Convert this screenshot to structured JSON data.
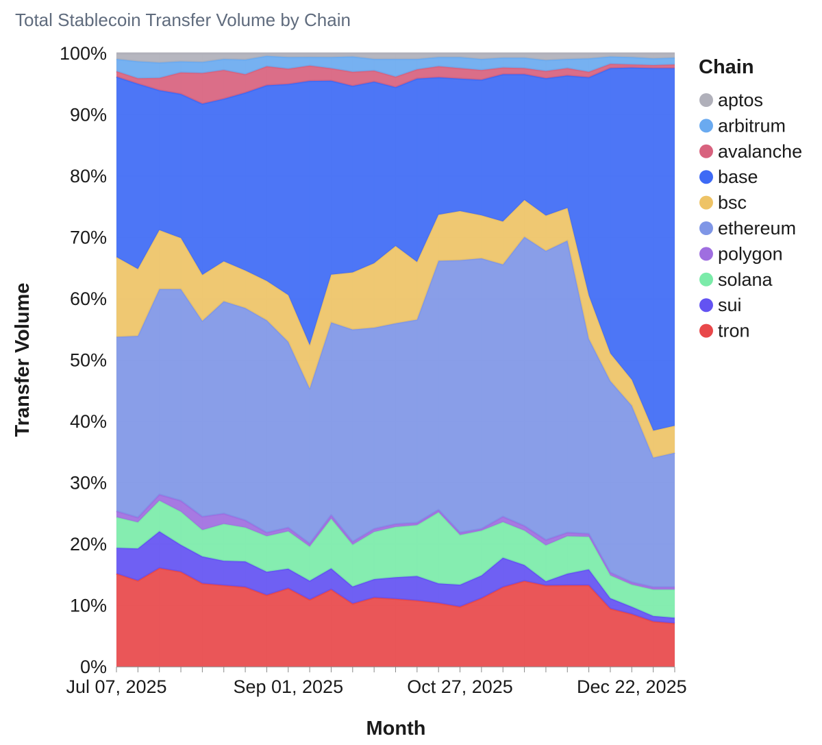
{
  "chart_data": {
    "type": "area",
    "stacked": true,
    "normalized": true,
    "title": "Total Stablecoin Transfer Volume by Chain",
    "xlabel": "Month",
    "ylabel": "Transfer Volume",
    "ylim": [
      0,
      100
    ],
    "y_ticks": [
      "0%",
      "10%",
      "20%",
      "30%",
      "40%",
      "50%",
      "60%",
      "70%",
      "80%",
      "90%",
      "100%"
    ],
    "x_tick_labels": [
      {
        "index": 0,
        "label": "Jul 07, 2025"
      },
      {
        "index": 8,
        "label": "Sep 01, 2025"
      },
      {
        "index": 16,
        "label": "Oct 27, 2025"
      },
      {
        "index": 24,
        "label": "Dec 22, 2025"
      }
    ],
    "x": [
      "2025-07-07",
      "2025-07-14",
      "2025-07-21",
      "2025-07-28",
      "2025-08-04",
      "2025-08-11",
      "2025-08-18",
      "2025-08-25",
      "2025-09-01",
      "2025-09-08",
      "2025-09-15",
      "2025-09-22",
      "2025-09-29",
      "2025-10-06",
      "2025-10-13",
      "2025-10-20",
      "2025-10-27",
      "2025-11-03",
      "2025-11-10",
      "2025-11-17",
      "2025-11-24",
      "2025-12-01",
      "2025-12-08",
      "2025-12-15",
      "2025-12-22",
      "2025-12-29",
      "2026-01-05"
    ],
    "grid": true,
    "legend": {
      "title": "Chain",
      "placement": "right"
    },
    "series": [
      {
        "name": "tron",
        "color": "#e8484a",
        "values": [
          15.2,
          14.2,
          16.1,
          15.5,
          13.6,
          13.3,
          13.0,
          11.7,
          12.8,
          11.0,
          12.5,
          10.3,
          11.3,
          11.1,
          10.8,
          10.4,
          9.8,
          11.2,
          13.0,
          14.0,
          13.4,
          13.3,
          13.3,
          9.5,
          8.6,
          7.4,
          7.1
        ]
      },
      {
        "name": "sui",
        "color": "#6353f2",
        "values": [
          4.2,
          5.3,
          6.0,
          4.4,
          4.4,
          4.0,
          4.2,
          3.8,
          3.2,
          3.1,
          3.4,
          2.8,
          3.0,
          3.5,
          4.0,
          3.2,
          3.6,
          3.7,
          4.8,
          2.6,
          0.7,
          1.9,
          2.6,
          1.7,
          1.2,
          0.9,
          0.9
        ]
      },
      {
        "name": "solana",
        "color": "#7beba9",
        "values": [
          5.0,
          4.3,
          5.0,
          5.4,
          4.3,
          6.0,
          5.5,
          5.8,
          6.1,
          5.6,
          8.0,
          6.8,
          7.7,
          8.2,
          8.3,
          11.6,
          8.1,
          7.3,
          5.8,
          5.6,
          5.9,
          6.1,
          5.3,
          3.7,
          3.6,
          4.3,
          4.6
        ]
      },
      {
        "name": "polygon",
        "color": "#9f6ee0",
        "values": [
          1.0,
          0.8,
          1.0,
          1.8,
          2.2,
          1.7,
          1.2,
          0.6,
          0.6,
          0.5,
          0.6,
          0.5,
          0.5,
          0.5,
          0.4,
          0.4,
          0.4,
          0.3,
          0.9,
          0.8,
          0.9,
          0.6,
          0.5,
          0.5,
          0.4,
          0.4,
          0.4
        ]
      },
      {
        "name": "ethereum",
        "color": "#7f96e6",
        "values": [
          28.4,
          29.9,
          33.5,
          34.5,
          31.9,
          34.6,
          34.6,
          34.6,
          30.3,
          25.4,
          31.1,
          34.6,
          32.8,
          32.7,
          33.1,
          40.6,
          44.4,
          44.1,
          41.1,
          47.1,
          47.6,
          47.6,
          31.8,
          31.2,
          28.8,
          21.1,
          21.9
        ]
      },
      {
        "name": "bsc",
        "color": "#eec366",
        "values": [
          13.0,
          11.0,
          9.6,
          8.3,
          7.5,
          6.5,
          6.1,
          6.4,
          7.6,
          7.1,
          7.7,
          9.3,
          10.5,
          12.6,
          9.4,
          7.5,
          8.0,
          7.0,
          7.0,
          6.0,
          5.8,
          5.3,
          7.0,
          4.5,
          4.2,
          4.4,
          4.4
        ]
      },
      {
        "name": "base",
        "color": "#3e6af5",
        "values": [
          29.4,
          30.5,
          22.8,
          23.5,
          27.9,
          26.5,
          29.0,
          31.9,
          34.4,
          43.3,
          31.3,
          30.4,
          29.6,
          25.9,
          29.9,
          22.4,
          21.6,
          22.1,
          24.0,
          20.5,
          22.6,
          21.6,
          35.6,
          46.5,
          50.9,
          59.1,
          58.3
        ]
      },
      {
        "name": "avalanche",
        "color": "#d8627e",
        "values": [
          0.9,
          0.9,
          2.0,
          3.5,
          5.0,
          4.7,
          3.0,
          3.1,
          2.5,
          2.5,
          2.0,
          2.3,
          1.8,
          1.7,
          1.5,
          1.8,
          1.7,
          1.6,
          1.1,
          1.0,
          1.2,
          1.2,
          0.9,
          0.7,
          0.5,
          0.5,
          0.6
        ]
      },
      {
        "name": "arbitrum",
        "color": "#6aaaf0",
        "values": [
          2.0,
          2.8,
          2.5,
          1.8,
          1.8,
          1.8,
          2.4,
          1.7,
          1.9,
          1.4,
          1.8,
          2.5,
          1.9,
          2.9,
          1.7,
          1.5,
          1.8,
          1.8,
          1.6,
          1.7,
          1.8,
          1.5,
          2.2,
          1.2,
          1.2,
          1.1,
          1.1
        ]
      },
      {
        "name": "aptos",
        "color": "#b0b0ba",
        "values": [
          0.9,
          1.3,
          1.5,
          1.3,
          1.4,
          0.9,
          1.0,
          0.4,
          0.6,
          0.6,
          0.6,
          0.5,
          0.9,
          0.9,
          0.9,
          0.6,
          0.6,
          0.9,
          0.7,
          0.7,
          1.1,
          0.9,
          0.8,
          0.5,
          0.6,
          0.8,
          0.7
        ]
      }
    ],
    "legend_order": [
      "aptos",
      "arbitrum",
      "avalanche",
      "base",
      "bsc",
      "ethereum",
      "polygon",
      "solana",
      "sui",
      "tron"
    ]
  }
}
